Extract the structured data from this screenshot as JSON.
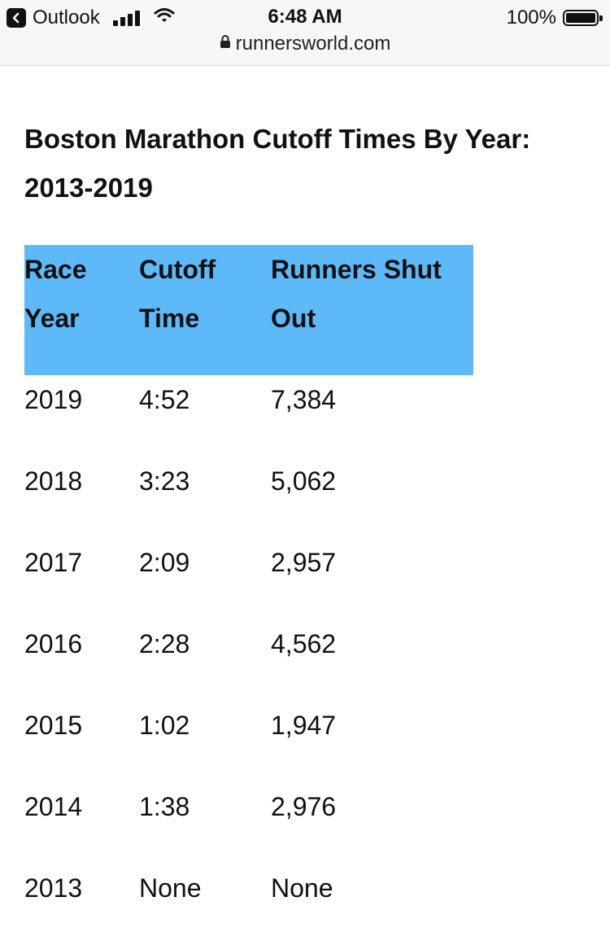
{
  "status_bar": {
    "back_app": "Outlook",
    "time": "6:48 AM",
    "battery": "100%",
    "url": "runnersworld.com"
  },
  "article": {
    "heading": "Boston Marathon Cutoff Times By Year: 2013-2019"
  },
  "table": {
    "header_color": "#5db9f8",
    "headers": [
      "Race Year",
      "Cutoff Time",
      "Runners Shut Out"
    ],
    "rows": [
      [
        "2019",
        "4:52",
        "7,384"
      ],
      [
        "2018",
        "3:23",
        "5,062"
      ],
      [
        "2017",
        "2:09",
        "2,957"
      ],
      [
        "2016",
        "2:28",
        "4,562"
      ],
      [
        "2015",
        "1:02",
        "1,947"
      ],
      [
        "2014",
        "1:38",
        "2,976"
      ],
      [
        "2013",
        "None",
        "None"
      ]
    ]
  }
}
